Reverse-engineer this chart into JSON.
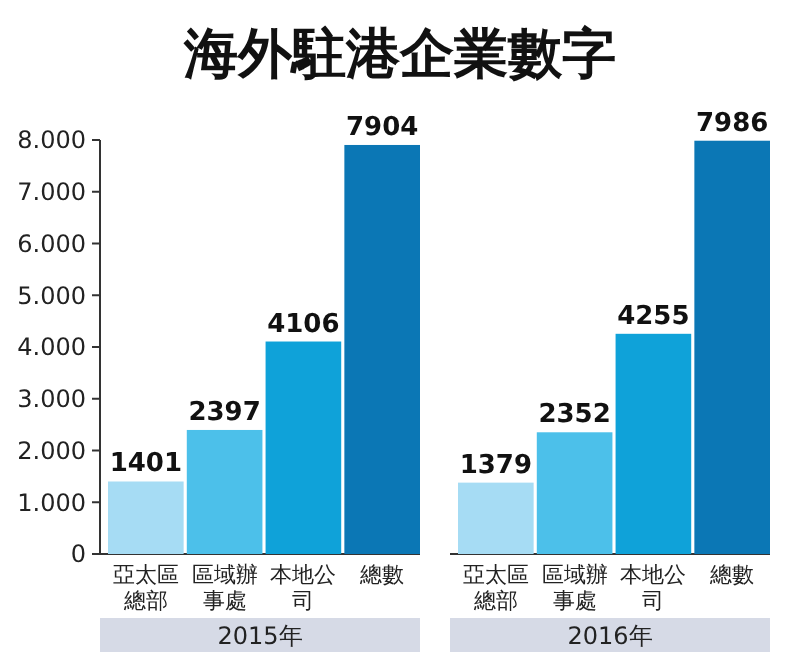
{
  "chart_data": [
    {
      "type": "bar",
      "title": "海外駐港企業數字",
      "xlabel": "2015年",
      "categories": [
        "亞太區總部",
        "區域辦事處",
        "本地公司",
        "總數"
      ],
      "values": [
        1401,
        2397,
        4106,
        7904
      ],
      "colors": [
        "#a6dcf4",
        "#4cc0ea",
        "#0fa2d9",
        "#0b77b5"
      ],
      "data_labels": true,
      "ylim": [
        0,
        8000
      ],
      "yticks": [
        0,
        {
          "value": 1000,
          "label": "1.000"
        },
        {
          "value": 2000,
          "label": "2.000"
        },
        {
          "value": 3000,
          "label": "3.000"
        },
        {
          "value": 4000,
          "label": "4.000"
        },
        {
          "value": 5000,
          "label": "5.000"
        },
        {
          "value": 6000,
          "label": "6.000"
        },
        {
          "value": 7000,
          "label": "7.000"
        },
        {
          "value": 8000,
          "label": "8.000"
        }
      ]
    },
    {
      "type": "bar",
      "xlabel": "2016年",
      "categories": [
        "亞太區總部",
        "區域辦事處",
        "本地公司",
        "總數"
      ],
      "values": [
        1379,
        2352,
        4255,
        7986
      ],
      "colors": [
        "#a6dcf4",
        "#4cc0ea",
        "#0fa2d9",
        "#0b77b5"
      ],
      "data_labels": true,
      "ylim": [
        0,
        8000
      ],
      "tick_labels": "x"
    }
  ]
}
